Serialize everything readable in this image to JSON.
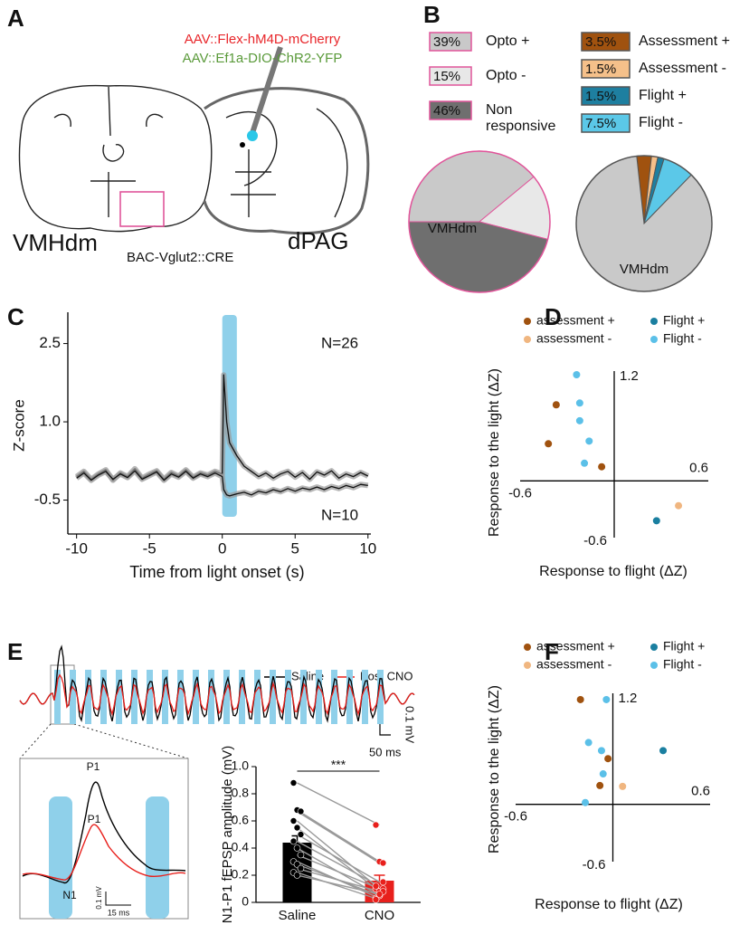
{
  "panel_labels": [
    "A",
    "B",
    "C",
    "D",
    "E",
    "F"
  ],
  "schematic": {
    "virus_1": "AAV::Flex-hM4D-mCherry",
    "virus_2": "AAV::Ef1a-DIO-ChR2-YFP",
    "region_1": "VMHdm",
    "region_2": "dPAG",
    "mouse_line": "BAC-Vglut2::CRE"
  },
  "traces": {
    "legend": [
      "Saline",
      "Post CNO"
    ],
    "scale_y": "0.1 mV",
    "scale_x": "50 ms",
    "inset_peaks": [
      "P1",
      "P1"
    ],
    "inset_trough": "N1",
    "inset_scale_y": "0.1 mV",
    "inset_scale_x": "15 ms"
  },
  "chart_data": [
    {
      "type": "pie",
      "categories": [
        "Opto +",
        "Opto -",
        "Non responsive"
      ],
      "values": [
        39,
        15,
        46
      ],
      "value_labels": [
        "39%",
        "15%",
        "46%"
      ],
      "colors": [
        "#c9c9c9",
        "#e8e8e8",
        "#6f6f6f"
      ],
      "edge_color": "#e0559a",
      "label": "VMHdm"
    },
    {
      "type": "pie",
      "categories": [
        "Assessment +",
        "Assessment -",
        "Flight +",
        "Flight -",
        null
      ],
      "values": [
        3.5,
        1.5,
        1.5,
        7.5,
        86
      ],
      "value_labels": [
        "3.5%",
        "1.5%",
        "1.5%",
        "7.5%",
        null
      ],
      "colors": [
        "#a0520f",
        "#f5c08a",
        "#1e7fa0",
        "#5bc8e8",
        "#c9c9c9"
      ],
      "edge_color": "#555555",
      "label": "VMHdm"
    },
    {
      "type": "line",
      "xlabel": "Time from light onset (s)",
      "ylabel": "Z-score",
      "x": [
        -10,
        -9.5,
        -9,
        -8.5,
        -8,
        -7.5,
        -7,
        -6.5,
        -6,
        -5.5,
        -5,
        -4.5,
        -4,
        -3.5,
        -3,
        -2.5,
        -2,
        -1.5,
        -1,
        -0.5,
        0,
        0.1,
        0.3,
        0.5,
        1,
        1.5,
        2,
        2.5,
        3,
        3.5,
        4,
        4.5,
        5,
        5.5,
        6,
        6.5,
        7,
        7.5,
        8,
        8.5,
        9,
        9.5,
        10
      ],
      "series": [
        {
          "name": "N=26",
          "color": "#111111",
          "values": [
            -0.05,
            0.05,
            -0.1,
            0.0,
            0.08,
            -0.12,
            0.02,
            -0.05,
            0.1,
            -0.08,
            0.0,
            0.06,
            -0.1,
            0.03,
            -0.04,
            0.08,
            -0.06,
            0.02,
            -0.02,
            0.05,
            0.0,
            1.9,
            1.0,
            0.6,
            0.35,
            0.15,
            0.05,
            -0.05,
            0.02,
            -0.08,
            0.0,
            0.05,
            -0.06,
            0.03,
            -0.1,
            0.04,
            -0.02,
            0.06,
            -0.08,
            0.0,
            -0.05,
            0.03,
            -0.04
          ]
        },
        {
          "name": "N=10",
          "color": "#111111",
          "values": [
            -0.08,
            0.02,
            -0.12,
            -0.02,
            0.05,
            -0.1,
            0.0,
            -0.07,
            0.06,
            -0.1,
            -0.03,
            0.04,
            -0.12,
            0.0,
            -0.06,
            0.05,
            -0.08,
            0.0,
            -0.05,
            0.02,
            -0.05,
            -0.3,
            -0.4,
            -0.42,
            -0.38,
            -0.35,
            -0.4,
            -0.33,
            -0.36,
            -0.3,
            -0.34,
            -0.28,
            -0.33,
            -0.27,
            -0.3,
            -0.25,
            -0.3,
            -0.24,
            -0.28,
            -0.22,
            -0.26,
            -0.2,
            -0.22
          ]
        }
      ],
      "xlim": [
        -10.6,
        10.2
      ],
      "xticks": [
        -10,
        -5,
        0,
        5,
        10
      ],
      "ylim": [
        -1.15,
        3.1
      ],
      "yticks": [
        -0.5,
        {
          "value": 1,
          "label": "1.0"
        },
        2.5
      ],
      "highlight": {
        "x": [
          0,
          1
        ],
        "color": "#8fd0ea"
      }
    },
    {
      "type": "scatter",
      "xlabel": "Response to flight (ΔZ)",
      "ylabel": "Response to the light (ΔZ)",
      "series": [
        {
          "name": "assessment +",
          "color": "#a0520f",
          "x": [
            -0.37,
            -0.42,
            -0.08
          ],
          "values": [
            0.86,
            0.42,
            0.16
          ]
        },
        {
          "name": "assessment -",
          "color": "#f0b680",
          "x": [
            0.41
          ],
          "values": [
            -0.28
          ]
        },
        {
          "name": "Flight +",
          "color": "#1a7fa0",
          "x": [
            0.27
          ],
          "values": [
            -0.45
          ]
        },
        {
          "name": "Flight -",
          "color": "#5bc0e8",
          "x": [
            -0.24,
            -0.22,
            -0.22,
            -0.16,
            -0.19
          ],
          "values": [
            1.2,
            0.88,
            0.68,
            0.45,
            0.2
          ]
        }
      ],
      "xlim": [
        -0.6,
        0.6
      ],
      "xticks": [
        -0.6,
        0.6
      ],
      "ylim": [
        -0.6,
        1.2
      ],
      "yticks": [
        -0.6,
        1.2
      ]
    },
    {
      "type": "bar",
      "ylabel": "N1-P1 fEPSP amplitude (mV)",
      "categories": [
        "Saline",
        "CNO"
      ],
      "values": [
        0.44,
        0.16
      ],
      "errors": [
        0.05,
        0.04
      ],
      "colors": [
        "#000000",
        "#e8201c"
      ],
      "points": [
        [
          0.88,
          0.68,
          0.67,
          0.6,
          0.55,
          0.5,
          0.45,
          0.4,
          0.35,
          0.3,
          0.28,
          0.25,
          0.22,
          0.2
        ],
        [
          0.57,
          0.3,
          0.29,
          0.1,
          0.08,
          0.15,
          0.12,
          0.05,
          0.1,
          0.03,
          0.05,
          0.08,
          0.02,
          0.06
        ]
      ],
      "significance": "***",
      "ylim": [
        0,
        1
      ],
      "yticks": [
        0,
        0.2,
        0.4,
        0.6,
        0.8,
        {
          "value": 1,
          "label": "1.0"
        }
      ]
    },
    {
      "type": "scatter",
      "xlabel": "Response to flight (ΔZ)",
      "ylabel": "Response to the light (ΔZ)",
      "series": [
        {
          "name": "assessment +",
          "color": "#a0520f",
          "x": [
            -0.2,
            -0.03,
            -0.08
          ],
          "values": [
            1.17,
            0.51,
            0.21
          ]
        },
        {
          "name": "assessment -",
          "color": "#f0b680",
          "x": [
            0.06
          ],
          "values": [
            0.2
          ]
        },
        {
          "name": "Flight +",
          "color": "#1a7fa0",
          "x": [
            0.31
          ],
          "values": [
            0.6
          ]
        },
        {
          "name": "Flight -",
          "color": "#5bc0e8",
          "x": [
            -0.04,
            -0.15,
            -0.07,
            -0.06,
            -0.17
          ],
          "values": [
            1.17,
            0.69,
            0.6,
            0.34,
            0.02
          ]
        }
      ],
      "xlim": [
        -0.6,
        0.6
      ],
      "xticks": [
        -0.6,
        0.6
      ],
      "ylim": [
        -0.6,
        1.2
      ],
      "yticks": [
        -0.6,
        1.2
      ]
    }
  ]
}
